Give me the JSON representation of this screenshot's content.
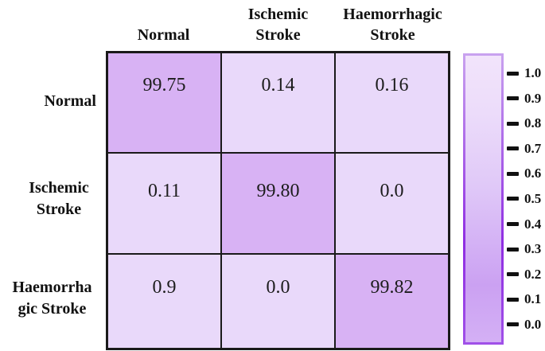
{
  "matrix": {
    "col_headers": [
      {
        "lines": [
          "Normal",
          ""
        ]
      },
      {
        "lines": [
          "Ischemic",
          "Stroke"
        ]
      },
      {
        "lines": [
          "Haemorrhagic",
          "Stroke"
        ]
      }
    ],
    "row_headers": [
      {
        "lines": [
          "Normal",
          ""
        ]
      },
      {
        "lines": [
          "Ischemic",
          "Stroke"
        ]
      },
      {
        "lines": [
          "Haemorrha",
          "gic Stroke"
        ]
      }
    ],
    "cells": [
      [
        "99.75",
        "0.14",
        "0.16"
      ],
      [
        "0.11",
        "99.80",
        "0.0"
      ],
      [
        "0.9",
        "0.0",
        "99.82"
      ]
    ]
  },
  "colorbar": {
    "ticks": [
      "1.0",
      "0.9",
      "0.8",
      "0.7",
      "0.6",
      "0.5",
      "0.4",
      "0.3",
      "0.2",
      "0.1",
      "0.0"
    ]
  },
  "colors": {
    "diagonal_cell": "#d8b2f4",
    "off_diagonal_cell": "#e9d9fa",
    "grid_border": "#1a1a1a",
    "text": "#1d1d1d",
    "colorbar_fill_gradient": [
      {
        "stop": 0,
        "color": "#f2e4fb"
      },
      {
        "stop": 0.2,
        "color": "#ecdcfa"
      },
      {
        "stop": 0.45,
        "color": "#e0c9f8"
      },
      {
        "stop": 0.65,
        "color": "#d4b2f5"
      },
      {
        "stop": 0.8,
        "color": "#cba1f2"
      },
      {
        "stop": 1,
        "color": "#d4b0f5"
      }
    ],
    "colorbar_border_gradient": [
      {
        "stop": 0,
        "color": "#c9a2ef"
      },
      {
        "stop": 0.65,
        "color": "#8f2de2"
      },
      {
        "stop": 1,
        "color": "#a050e8"
      }
    ]
  },
  "chart_data": {
    "type": "heatmap",
    "title": "",
    "x_categories": [
      "Normal",
      "Ischemic Stroke",
      "Haemorrhagic Stroke"
    ],
    "y_categories": [
      "Normal",
      "Ischemic Stroke",
      "Haemorrhagic Stroke"
    ],
    "values": [
      [
        99.75,
        0.14,
        0.16
      ],
      [
        0.11,
        99.8,
        0.0
      ],
      [
        0.9,
        0.0,
        99.82
      ]
    ],
    "colormap": "light-purple",
    "colorbar": {
      "min": 0.0,
      "max": 1.0,
      "tick_step": 0.1,
      "position": "right"
    },
    "legend_position": "none",
    "grid": true
  }
}
